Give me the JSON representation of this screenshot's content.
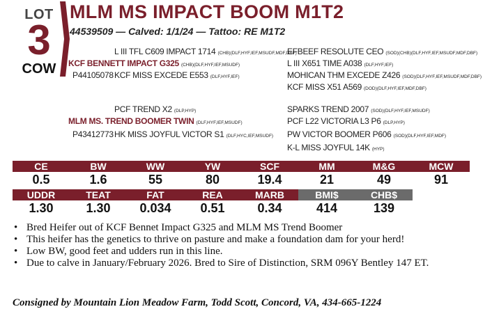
{
  "lot": {
    "label": "LOT",
    "number": "3",
    "type": "COW"
  },
  "header": {
    "title": "MLM MS IMPACT BOOM M1T2",
    "subtitle": "44539509 — Calved: 1/1/24 — Tattoo: RE M1T2"
  },
  "pedigree": {
    "sire_block": {
      "sire_sire": {
        "name": "L III TFL C609 IMPACT 1714",
        "codes": "(CHB)(DLF,HYF,IEF,MSUDF,MDF,DBF)"
      },
      "sire": {
        "name": "KCF BENNETT IMPACT G325",
        "codes": "(CHB)(DLF,HYF,IEF,MSUDF)"
      },
      "sire_reg": "P44105078",
      "sire_dam": {
        "name": "KCF MISS EXCEDE E553",
        "codes": "(DLF,HYF,IEF)"
      },
      "gs1": {
        "name": "EFBEEF RESOLUTE CEO",
        "codes": "(SOD)(CHB)(DLF,HYF,IEF,MSUDF,MDF,DBF)"
      },
      "gs2": {
        "name": "L III X651 TIME A038",
        "codes": "(DLF,HYF,IEF)"
      },
      "gs3": {
        "name": "MOHICAN THM EXCEDE Z426",
        "codes": "(SOD)(DLF,HYF,IEF,MSUDF,MDF,DBF)"
      },
      "gs4": {
        "name": "KCF MISS X51 A569",
        "codes": "(DOD)(DLF,HYF,IEF,MDF,DBF)"
      }
    },
    "dam_block": {
      "dam_sire": {
        "name": "PCF TREND X2",
        "codes": "(DLP,HYP)"
      },
      "dam": {
        "name": "MLM MS. TREND BOOMER TWIN",
        "codes": "(DLF,HYF,IEF,MSUDF)"
      },
      "dam_reg": "P43412773",
      "dam_dam": {
        "name": "HK MISS JOYFUL VICTOR S1",
        "codes": "(DLF,HYC,IEF,MSUDF)"
      },
      "gs1": {
        "name": "SPARKS TREND 2007",
        "codes": "(SOD)(DLF,HYF,IEF,MSUDF)"
      },
      "gs2": {
        "name": "PCF L22 VICTORIA L3 P6",
        "codes": "(DLP,HYP)"
      },
      "gs3": {
        "name": "PW VICTOR BOOMER P606",
        "codes": "(SOD)(DLF,HYF,IEF,MDF)"
      },
      "gs4": {
        "name": "K-L MISS JOYFUL 14K",
        "codes": "(HYP)"
      }
    }
  },
  "epd_row1": [
    {
      "label": "CE",
      "value": "0.5"
    },
    {
      "label": "BW",
      "value": "1.6"
    },
    {
      "label": "WW",
      "value": "55"
    },
    {
      "label": "YW",
      "value": "80"
    },
    {
      "label": "SCF",
      "value": "19.4"
    },
    {
      "label": "MM",
      "value": "21"
    },
    {
      "label": "M&G",
      "value": "49"
    },
    {
      "label": "MCW",
      "value": "91"
    }
  ],
  "epd_row2": [
    {
      "label": "UDDR",
      "value": "1.30"
    },
    {
      "label": "TEAT",
      "value": "1.30"
    },
    {
      "label": "FAT",
      "value": "0.034"
    },
    {
      "label": "REA",
      "value": "0.51"
    },
    {
      "label": "MARB",
      "value": "0.34"
    },
    {
      "label": "BMI$",
      "value": "414"
    },
    {
      "label": "CHB$",
      "value": "139"
    }
  ],
  "notes": [
    "Bred Heifer out of KCF Bennet Impact G325 and MLM MS Trend Boomer",
    "This heifer has the genetics to thrive on pasture and make a foundation dam for your herd!",
    "Low BW, good feet and udders run in this line.",
    "Due to calve in January/February 2026. Bred to Sire of Distinction, SRM 096Y Bentley 147 ET."
  ],
  "bullet": "•",
  "consignor": "Consigned by Mountain Lion Meadow Farm, Todd Scott, Concord, VA, 434-665-1224",
  "colors": {
    "accent": "#7a1f2b",
    "gray_header": "#6b6b6b"
  }
}
